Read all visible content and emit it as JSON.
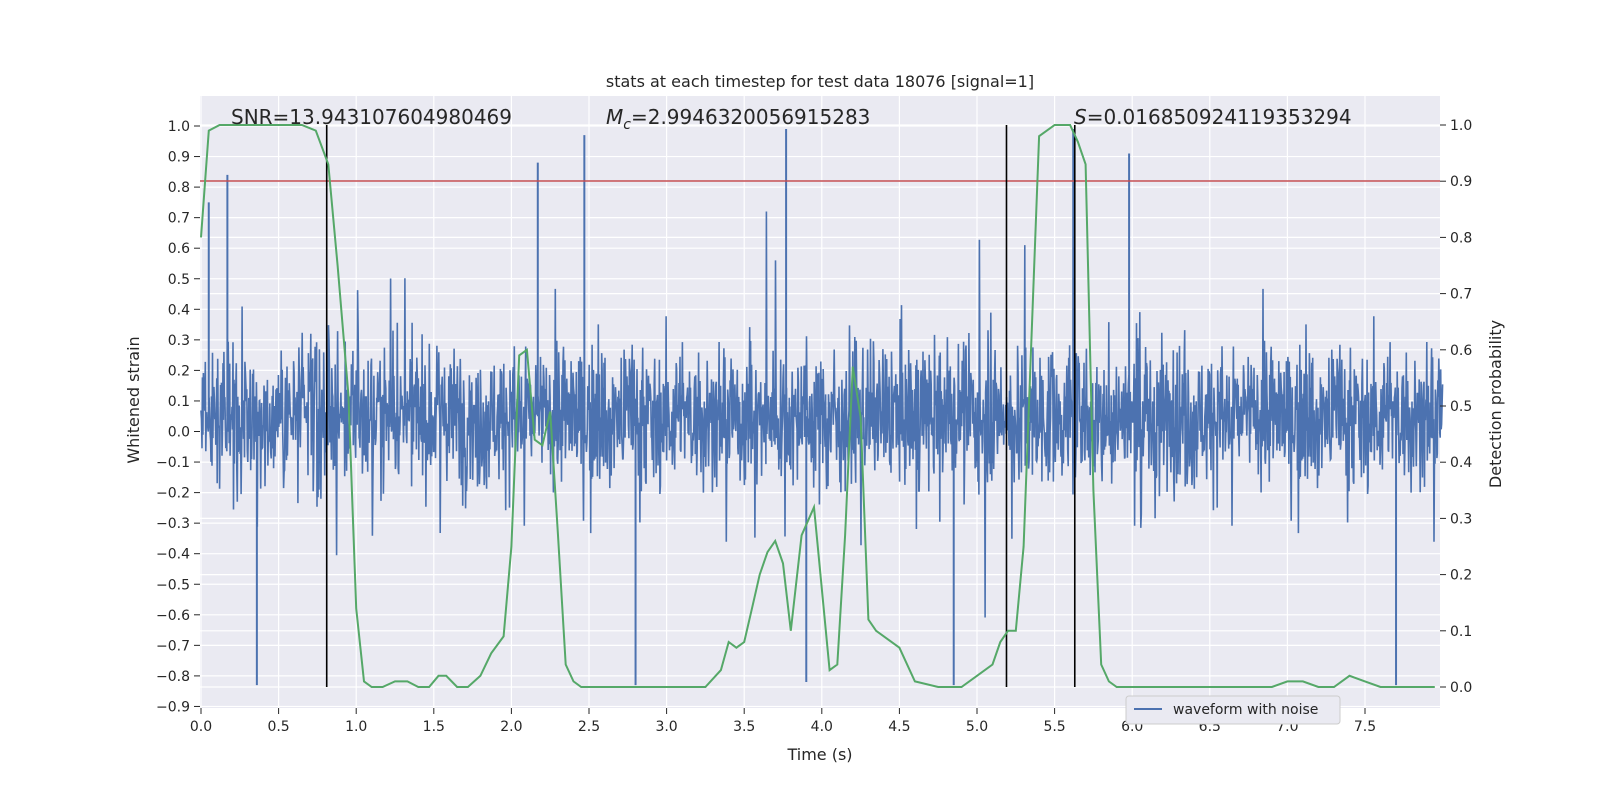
{
  "chart_data": {
    "type": "line",
    "title": "stats at each timestep for test data 18076 [signal=1]",
    "xlabel": "Time (s)",
    "ylabel": "Whitened strain",
    "y2label": "Detection probability",
    "xlim": [
      0.0,
      8.0
    ],
    "ylim": [
      -0.9,
      1.0
    ],
    "y2lim": [
      0.0,
      1.0
    ],
    "xticks": [
      "0.0",
      "0.5",
      "1.0",
      "1.5",
      "2.0",
      "2.5",
      "3.0",
      "3.5",
      "4.0",
      "4.5",
      "5.0",
      "5.5",
      "6.0",
      "6.5",
      "7.0",
      "7.5"
    ],
    "yticks": [
      "1.0",
      "0.9",
      "0.8",
      "0.7",
      "0.6",
      "0.5",
      "0.4",
      "0.3",
      "0.2",
      "0.1",
      "0.0",
      "−0.1",
      "−0.2",
      "−0.3",
      "−0.4",
      "−0.5",
      "−0.6",
      "−0.7",
      "−0.8",
      "−0.9"
    ],
    "y2ticks": [
      "1.0",
      "0.9",
      "0.8",
      "0.7",
      "0.6",
      "0.5",
      "0.4",
      "0.3",
      "0.2",
      "0.1",
      "0.0"
    ],
    "grid": true,
    "legend_position": "lower-right",
    "annotations": {
      "snr": "SNR=13.943107604980469",
      "mc_symbol": "M",
      "mc_subscript": "c",
      "mc_value": "=2.9946320056915283",
      "s_symbol": "S",
      "s_value": "=0.016850924119353294"
    },
    "series": [
      {
        "name": "waveform with noise",
        "axis": "left",
        "color": "#4c72b0",
        "description_values": "dense noisy whitened strain, mostly within [-0.45, 0.55]",
        "notable_peaks": [
          [
            0.05,
            0.75
          ],
          [
            0.17,
            0.84
          ],
          [
            2.17,
            0.88
          ],
          [
            2.47,
            0.97
          ],
          [
            3.77,
            0.99
          ],
          [
            5.62,
            0.99
          ],
          [
            5.98,
            0.91
          ]
        ],
        "notable_troughs": [
          [
            0.36,
            -0.83
          ],
          [
            2.8,
            -0.83
          ],
          [
            3.9,
            -0.82
          ],
          [
            4.85,
            -0.83
          ],
          [
            7.7,
            -0.83
          ]
        ]
      },
      {
        "name": "",
        "axis": "right",
        "color": "#55a868",
        "x": [
          0.0,
          0.05,
          0.12,
          0.3,
          0.5,
          0.65,
          0.74,
          0.82,
          0.88,
          0.95,
          1.0,
          1.05,
          1.1,
          1.17,
          1.25,
          1.33,
          1.4,
          1.47,
          1.53,
          1.58,
          1.65,
          1.72,
          1.8,
          1.87,
          1.95,
          2.0,
          2.05,
          2.1,
          2.15,
          2.2,
          2.25,
          2.3,
          2.35,
          2.4,
          2.45,
          2.55,
          2.7,
          2.9,
          3.1,
          3.25,
          3.35,
          3.4,
          3.45,
          3.5,
          3.55,
          3.6,
          3.65,
          3.7,
          3.75,
          3.8,
          3.87,
          3.95,
          4.05,
          4.1,
          4.15,
          4.2,
          4.25,
          4.3,
          4.35,
          4.4,
          4.5,
          4.6,
          4.75,
          4.9,
          5.0,
          5.1,
          5.15,
          5.2,
          5.25,
          5.3,
          5.4,
          5.5,
          5.6,
          5.65,
          5.7,
          5.75,
          5.8,
          5.85,
          5.9,
          6.0,
          6.3,
          6.6,
          6.9,
          7.0,
          7.1,
          7.2,
          7.3,
          7.4,
          7.5,
          7.6,
          7.75,
          7.95
        ],
        "values": [
          0.8,
          0.99,
          1.0,
          1.0,
          1.0,
          1.0,
          0.99,
          0.93,
          0.75,
          0.52,
          0.14,
          0.01,
          0.0,
          0.0,
          0.01,
          0.01,
          0.0,
          0.0,
          0.02,
          0.02,
          0.0,
          0.0,
          0.02,
          0.06,
          0.09,
          0.25,
          0.59,
          0.6,
          0.44,
          0.43,
          0.49,
          0.27,
          0.04,
          0.01,
          0.0,
          0.0,
          0.0,
          0.0,
          0.0,
          0.0,
          0.03,
          0.08,
          0.07,
          0.08,
          0.14,
          0.2,
          0.24,
          0.26,
          0.22,
          0.1,
          0.27,
          0.32,
          0.03,
          0.04,
          0.27,
          0.57,
          0.48,
          0.12,
          0.1,
          0.09,
          0.07,
          0.01,
          0.0,
          0.0,
          0.02,
          0.04,
          0.08,
          0.1,
          0.1,
          0.25,
          0.98,
          1.0,
          1.0,
          0.97,
          0.93,
          0.35,
          0.04,
          0.01,
          0.0,
          0.0,
          0.0,
          0.0,
          0.0,
          0.01,
          0.01,
          0.0,
          0.0,
          0.02,
          0.01,
          0.0,
          0.0,
          0.0
        ]
      }
    ],
    "hlines": [
      {
        "axis": "left",
        "y": 0.82,
        "color": "#c44e52"
      }
    ],
    "vlines": [
      {
        "x": 0.81,
        "color": "#000000"
      },
      {
        "x": 5.19,
        "color": "#000000"
      },
      {
        "x": 5.63,
        "color": "#000000"
      }
    ]
  }
}
